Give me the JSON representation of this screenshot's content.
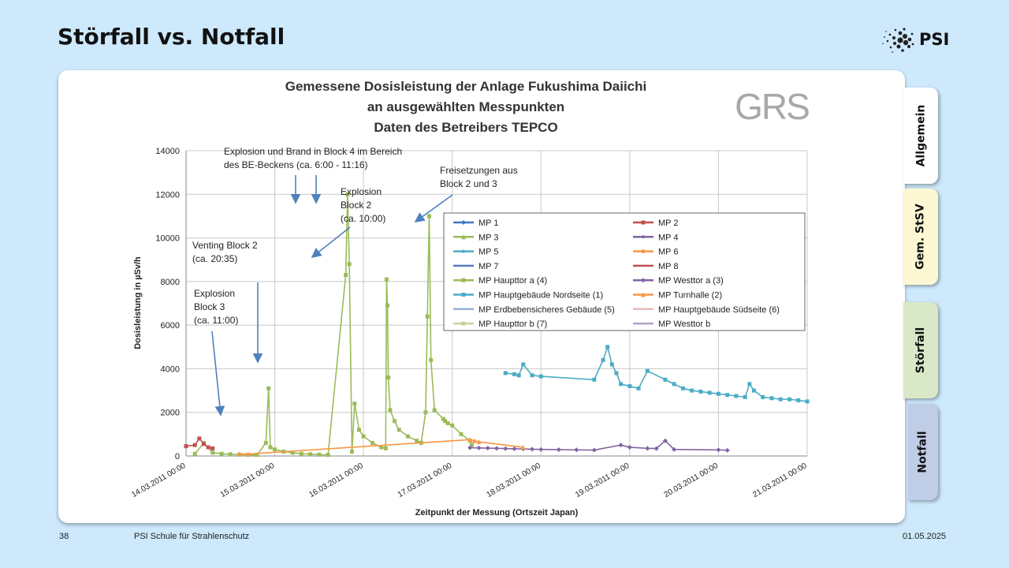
{
  "slide": {
    "title": "Störfall vs. Notfall",
    "logo_text": "PSI",
    "page_number": "38",
    "footer_text": "PSI Schule für Strahlenschutz",
    "date": "01.05.2025"
  },
  "tabs": [
    {
      "label": "Allgemein"
    },
    {
      "label": "Gem. StSV"
    },
    {
      "label": "Störfall"
    },
    {
      "label": "Notfall"
    }
  ],
  "chart_data": {
    "type": "scatter",
    "title_lines": [
      "Gemessene Dosisleistung der Anlage Fukushima Daiichi",
      "an ausgewählten Messpunkten",
      "Daten des Betreibers TEPCO"
    ],
    "watermark": "GRS",
    "xlabel": "Zeitpunkt der Messung (Ortszeit Japan)",
    "ylabel": "Dosisleistung in µSv/h",
    "xlim": [
      0,
      7
    ],
    "ylim": [
      0,
      14000
    ],
    "yticks": [
      0,
      2000,
      4000,
      6000,
      8000,
      10000,
      12000,
      14000
    ],
    "ytick_labels": [
      "0",
      "2000",
      "4000",
      "6000",
      "8000",
      "10000",
      "12000",
      "14000"
    ],
    "xtick_labels": [
      "14.03.2011 00:00",
      "15.03.2011 00:00",
      "16.03.2011 00:00",
      "17.03.2011 00:00",
      "18.03.2011 00:00",
      "19.03.2011 00:00",
      "20.03.2011 00:00",
      "21.03.2011 00:00"
    ],
    "grid": true,
    "legend_position": "right",
    "legend": [
      {
        "label": "MP 1",
        "color": "#4472c4",
        "marker": "diamond"
      },
      {
        "label": "MP 2",
        "color": "#c0504d",
        "marker": "square"
      },
      {
        "label": "MP 3",
        "color": "#9bbb59",
        "marker": "triangle"
      },
      {
        "label": "MP 4",
        "color": "#8064a2",
        "marker": "x"
      },
      {
        "label": "MP 5",
        "color": "#4bacc6",
        "marker": "x"
      },
      {
        "label": "MP 6",
        "color": "#f79646",
        "marker": "circle"
      },
      {
        "label": "MP 7",
        "color": "#4f81bd",
        "marker": "none"
      },
      {
        "label": "MP 8",
        "color": "#c0504d",
        "marker": "none"
      },
      {
        "label": "MP Haupttor a (4)",
        "color": "#9bbb59",
        "marker": "square"
      },
      {
        "label": "MP Westtor a (3)",
        "color": "#8064a2",
        "marker": "diamond"
      },
      {
        "label": "MP Hauptgebäude Nordseite (1)",
        "color": "#4bacc6",
        "marker": "square"
      },
      {
        "label": "MP Turnhalle (2)",
        "color": "#f79646",
        "marker": "triangle"
      },
      {
        "label": "MP Erdbebensicheres Gebäude (5)",
        "color": "#95b3d7",
        "marker": "none"
      },
      {
        "label": "MP Hauptgebäude Südseite (6)",
        "color": "#e6b9b8",
        "marker": "none"
      },
      {
        "label": "MP Haupttor b (7)",
        "color": "#c3d69b",
        "marker": "square"
      },
      {
        "label": "MP Westtor b",
        "color": "#b3a2c7",
        "marker": "none"
      }
    ],
    "annotations": [
      {
        "lines": [
          "Explosion und Brand in Block 4 im Bereich",
          "des BE-Beckens (ca. 6:00 - 11:16)"
        ]
      },
      {
        "lines": [
          "Freisetzungen aus",
          "Block 2 und 3"
        ]
      },
      {
        "lines": [
          "Explosion",
          "Block 2",
          "(ca. 10:00)"
        ]
      },
      {
        "lines": [
          "Venting Block 2",
          "(ca. 20:35)"
        ]
      },
      {
        "lines": [
          "Explosion",
          "Block 3",
          "(ca. 11:00)"
        ]
      }
    ],
    "series": [
      {
        "name": "MP Haupttor a (4)",
        "color": "#9bbb59",
        "x": [
          0.1,
          0.2,
          0.3,
          0.4,
          0.5,
          0.6,
          0.7,
          0.8,
          0.9,
          0.93,
          0.95,
          1.0,
          1.1,
          1.2,
          1.3,
          1.4,
          1.5,
          1.6,
          1.8,
          1.82,
          1.84,
          1.87,
          1.9,
          1.95,
          2.0,
          2.1,
          2.2,
          2.25,
          2.26,
          2.27,
          2.28,
          2.3,
          2.35,
          2.4,
          2.5,
          2.6,
          2.65,
          2.7,
          2.72,
          2.74,
          2.76,
          2.8,
          2.9,
          2.92,
          2.95,
          3.0,
          3.1,
          3.2,
          3.22
        ],
        "y": [
          100,
          600,
          150,
          100,
          80,
          60,
          50,
          50,
          600,
          3100,
          400,
          300,
          200,
          150,
          100,
          80,
          60,
          50,
          8300,
          12000,
          8800,
          200,
          2400,
          1200,
          900,
          600,
          400,
          350,
          8100,
          6900,
          3600,
          2100,
          1600,
          1200,
          900,
          700,
          600,
          2000,
          6400,
          11000,
          4400,
          2100,
          1700,
          1600,
          1500,
          1400,
          1000,
          700,
          500
        ]
      },
      {
        "name": "MP Hauptgebäude Nordseite (1)",
        "color": "#4bacc6",
        "x": [
          3.6,
          3.7,
          3.75,
          3.8,
          3.9,
          4.0,
          4.6,
          4.7,
          4.75,
          4.8,
          4.85,
          4.9,
          5.0,
          5.1,
          5.2,
          5.4,
          5.5,
          5.6,
          5.7,
          5.8,
          5.9,
          6.0,
          6.1,
          6.2,
          6.3,
          6.35,
          6.4,
          6.5,
          6.6,
          6.7,
          6.8,
          6.9,
          7.0
        ],
        "y": [
          3800,
          3750,
          3700,
          4200,
          3700,
          3650,
          3500,
          4400,
          5000,
          4200,
          3800,
          3300,
          3200,
          3100,
          3900,
          3500,
          3300,
          3100,
          3000,
          2950,
          2900,
          2850,
          2800,
          2750,
          2700,
          3300,
          3000,
          2700,
          2650,
          2600,
          2600,
          2550,
          2500
        ]
      },
      {
        "name": "MP Westtor a (3)",
        "color": "#8064a2",
        "x": [
          3.2,
          3.3,
          3.4,
          3.5,
          3.6,
          3.7,
          3.8,
          3.9,
          4.0,
          4.2,
          4.4,
          4.6,
          4.9,
          5.0,
          5.2,
          5.3,
          5.4,
          5.5,
          6.0,
          6.1
        ],
        "y": [
          380,
          370,
          360,
          350,
          340,
          330,
          320,
          310,
          300,
          290,
          280,
          270,
          500,
          400,
          350,
          340,
          700,
          300,
          280,
          260
        ]
      },
      {
        "name": "MP 2",
        "color": "#c0504d",
        "x": [
          0.0,
          0.1,
          0.15,
          0.2,
          0.25,
          0.3
        ],
        "y": [
          450,
          500,
          800,
          550,
          400,
          350
        ]
      },
      {
        "name": "MP Turnhalle (2)",
        "color": "#f79646",
        "x": [
          0.6,
          0.7,
          3.2,
          3.25,
          3.3,
          3.8
        ],
        "y": [
          100,
          90,
          750,
          700,
          650,
          400
        ]
      }
    ]
  }
}
